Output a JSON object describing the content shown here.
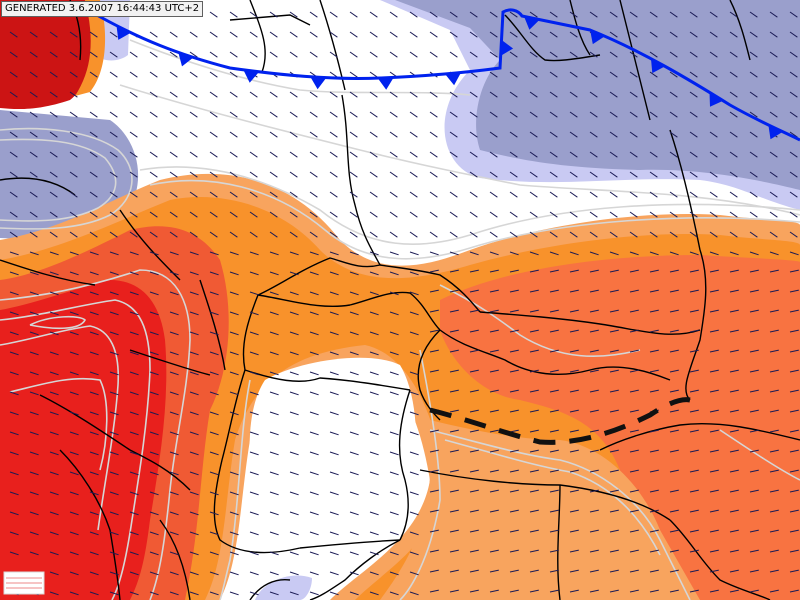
{
  "map": {
    "generated_label": "GENERATED 3.6.2007 16:44:43 UTC+2",
    "colors": {
      "cold_dark": "#9a9fcc",
      "cold_light": "#c9caf3",
      "neutral": "#ffffff",
      "warm_light": "#f8a45e",
      "warm_orange": "#f8922b",
      "warm_mid": "#f87341",
      "warm_strong": "#f05a34",
      "warm_hot": "#e8201d",
      "warm_extreme": "#cc1414",
      "contour": "#d6d6d6",
      "border": "#000000",
      "cold_front": "#0022ee",
      "trough_line": "#111111",
      "wind_barb": "#1a1a55"
    },
    "icons": {
      "cold_front": "cold-front-triangles",
      "trough": "dashed-trough-line",
      "wind": "wind-barb-arrows"
    }
  }
}
